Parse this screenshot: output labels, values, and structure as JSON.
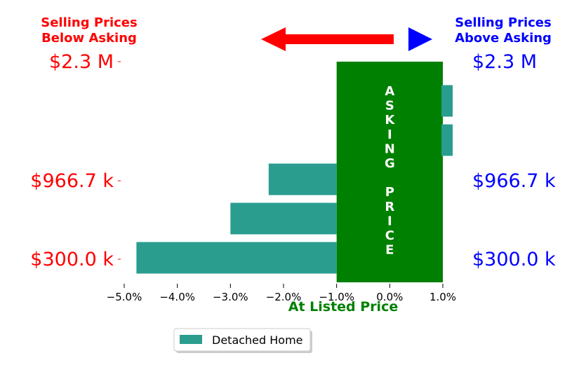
{
  "header": {
    "left_title_line1": "Selling Prices",
    "left_title_line2": "Below Asking",
    "right_title_line1": "Selling Prices",
    "right_title_line2": "Above Asking"
  },
  "asking_column": {
    "letters": [
      "A",
      "S",
      "K",
      "I",
      "N",
      "G",
      "",
      "P",
      "R",
      "I",
      "C",
      "E"
    ],
    "color": "#008000"
  },
  "colors": {
    "below": "#ff0000",
    "above": "#0000ff",
    "bar": "#2a9d8f",
    "at_listed": "#008000"
  },
  "chart_data": {
    "type": "bar",
    "orientation": "horizontal",
    "xlabel": "At Listed Price",
    "xlim": [
      -5.0,
      1.0
    ],
    "x_ticks": [
      "−5.0%",
      "−4.0%",
      "−3.0%",
      "−2.0%",
      "−1.0%",
      "0.0%",
      "1.0%"
    ],
    "x_tick_values": [
      -5.0,
      -4.0,
      -3.0,
      -2.0,
      -1.0,
      0.0,
      1.0
    ],
    "y_tick_labels": [
      "$2.3 M",
      "$966.7 k",
      "$300.0 k"
    ],
    "series": [
      {
        "name": "Detached Home",
        "values": [
          1.2,
          1.2,
          -2.28,
          -3.0,
          -4.77
        ]
      }
    ],
    "asking_band": [
      -1.0,
      1.0
    ]
  },
  "legend": {
    "label": "Detached Home",
    "position": "bottom-center"
  }
}
